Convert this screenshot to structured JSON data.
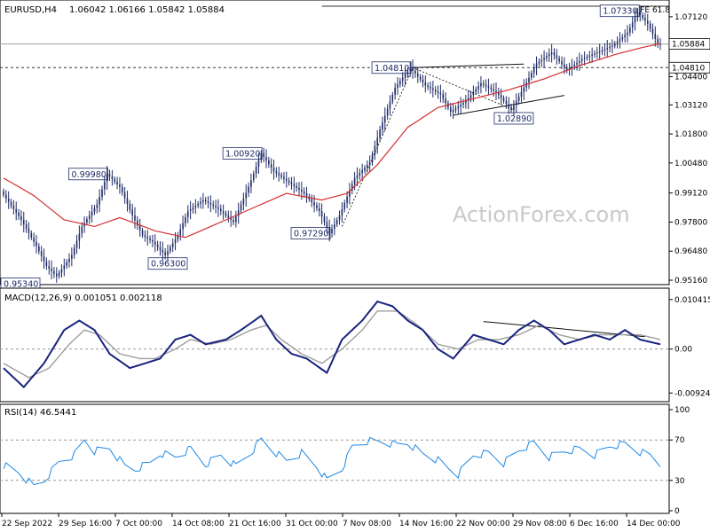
{
  "chart_data": [
    {
      "type": "candlestick",
      "panel": "price",
      "header": {
        "symbol": "EURUSD,H4",
        "ohlc": "1.06042 1.06166 1.05842 1.05884"
      },
      "ylim": [
        0.95,
        1.078
      ],
      "y_ticks": [
        "1.07120",
        "1.04400",
        "1.03120",
        "1.01800",
        "1.00480",
        "0.99120",
        "0.97800",
        "0.96480",
        "0.95160"
      ],
      "current_price": "1.05884",
      "level_label": "1.04810",
      "fe_label": "FE 61.8",
      "watermark": "ActionForex.com",
      "annotations": [
        "0.95340",
        "0.99980",
        "0.96300",
        "1.00920",
        "0.97290",
        "1.04810",
        "1.02890",
        "1.07330"
      ],
      "price_path": [
        [
          0,
          0.992
        ],
        [
          8,
          0.979
        ],
        [
          14,
          0.967
        ],
        [
          18,
          0.958
        ],
        [
          22,
          0.9534
        ],
        [
          28,
          0.963
        ],
        [
          32,
          0.976
        ],
        [
          38,
          0.986
        ],
        [
          42,
          0.9998
        ],
        [
          47,
          0.994
        ],
        [
          52,
          0.981
        ],
        [
          56,
          0.972
        ],
        [
          60,
          0.969
        ],
        [
          65,
          0.963
        ],
        [
          70,
          0.972
        ],
        [
          74,
          0.983
        ],
        [
          80,
          0.988
        ],
        [
          86,
          0.984
        ],
        [
          92,
          0.978
        ],
        [
          98,
          0.994
        ],
        [
          103,
          1.0092
        ],
        [
          108,
          1.001
        ],
        [
          114,
          0.996
        ],
        [
          120,
          0.991
        ],
        [
          126,
          0.983
        ],
        [
          130,
          0.9729
        ],
        [
          134,
          0.981
        ],
        [
          140,
          0.998
        ],
        [
          146,
          1.005
        ],
        [
          150,
          1.02
        ],
        [
          156,
          1.039
        ],
        [
          162,
          1.0481
        ],
        [
          168,
          1.04
        ],
        [
          174,
          1.036
        ],
        [
          178,
          1.028
        ],
        [
          184,
          1.033
        ],
        [
          190,
          1.041
        ],
        [
          196,
          1.037
        ],
        [
          202,
          1.0289
        ],
        [
          206,
          1.037
        ],
        [
          212,
          1.05
        ],
        [
          218,
          1.055
        ],
        [
          224,
          1.047
        ],
        [
          230,
          1.052
        ],
        [
          236,
          1.055
        ],
        [
          242,
          1.058
        ],
        [
          248,
          1.064
        ],
        [
          252,
          1.0733
        ],
        [
          256,
          1.068
        ],
        [
          260,
          1.0588
        ]
      ],
      "sma_path": [
        [
          0,
          0.998
        ],
        [
          12,
          0.99
        ],
        [
          24,
          0.979
        ],
        [
          36,
          0.976
        ],
        [
          46,
          0.98
        ],
        [
          60,
          0.974
        ],
        [
          72,
          0.971
        ],
        [
          86,
          0.978
        ],
        [
          100,
          0.985
        ],
        [
          112,
          0.991
        ],
        [
          126,
          0.988
        ],
        [
          136,
          0.991
        ],
        [
          148,
          1.004
        ],
        [
          160,
          1.021
        ],
        [
          172,
          1.03
        ],
        [
          186,
          1.034
        ],
        [
          200,
          1.038
        ],
        [
          214,
          1.043
        ],
        [
          228,
          1.049
        ],
        [
          242,
          1.054
        ],
        [
          252,
          1.057
        ],
        [
          260,
          1.059
        ]
      ],
      "colors": {
        "candles": "#1e2b66",
        "sma": "#d32f2f",
        "trendlines": "#111111",
        "dashed": "#333333"
      }
    },
    {
      "type": "line",
      "panel": "macd",
      "header": "MACD(12,26,9) 0.001051 0.002118",
      "ylim": [
        -0.0105,
        0.0115
      ],
      "y_ticks": [
        "0.010415",
        "0.00",
        "-0.009244"
      ],
      "macd": [
        [
          0,
          -0.004
        ],
        [
          8,
          -0.008
        ],
        [
          16,
          -0.003
        ],
        [
          24,
          0.004
        ],
        [
          30,
          0.006
        ],
        [
          36,
          0.004
        ],
        [
          42,
          -0.001
        ],
        [
          50,
          -0.004
        ],
        [
          56,
          -0.003
        ],
        [
          62,
          -0.002
        ],
        [
          68,
          0.002
        ],
        [
          74,
          0.003
        ],
        [
          80,
          0.001
        ],
        [
          88,
          0.002
        ],
        [
          94,
          0.004
        ],
        [
          102,
          0.007
        ],
        [
          108,
          0.002
        ],
        [
          114,
          -0.001
        ],
        [
          120,
          -0.002
        ],
        [
          128,
          -0.005
        ],
        [
          134,
          0.002
        ],
        [
          142,
          0.006
        ],
        [
          148,
          0.01
        ],
        [
          154,
          0.009
        ],
        [
          160,
          0.006
        ],
        [
          166,
          0.004
        ],
        [
          172,
          0.0
        ],
        [
          178,
          -0.002
        ],
        [
          186,
          0.003
        ],
        [
          192,
          0.002
        ],
        [
          198,
          0.001
        ],
        [
          204,
          0.004
        ],
        [
          210,
          0.006
        ],
        [
          216,
          0.004
        ],
        [
          222,
          0.001
        ],
        [
          228,
          0.002
        ],
        [
          234,
          0.003
        ],
        [
          240,
          0.002
        ],
        [
          246,
          0.004
        ],
        [
          252,
          0.002
        ],
        [
          260,
          0.001
        ]
      ],
      "signal": [
        [
          0,
          -0.003
        ],
        [
          10,
          -0.006
        ],
        [
          18,
          -0.004
        ],
        [
          26,
          0.001
        ],
        [
          32,
          0.004
        ],
        [
          38,
          0.003
        ],
        [
          46,
          -0.001
        ],
        [
          54,
          -0.002
        ],
        [
          60,
          -0.002
        ],
        [
          68,
          0.0
        ],
        [
          74,
          0.002
        ],
        [
          82,
          0.001
        ],
        [
          90,
          0.002
        ],
        [
          98,
          0.004
        ],
        [
          104,
          0.005
        ],
        [
          110,
          0.002
        ],
        [
          118,
          -0.001
        ],
        [
          126,
          -0.003
        ],
        [
          134,
          0.0
        ],
        [
          142,
          0.004
        ],
        [
          148,
          0.008
        ],
        [
          156,
          0.008
        ],
        [
          164,
          0.005
        ],
        [
          172,
          0.001
        ],
        [
          180,
          0.0
        ],
        [
          188,
          0.002
        ],
        [
          196,
          0.002
        ],
        [
          204,
          0.003
        ],
        [
          212,
          0.005
        ],
        [
          220,
          0.003
        ],
        [
          228,
          0.002
        ],
        [
          236,
          0.003
        ],
        [
          244,
          0.003
        ],
        [
          252,
          0.003
        ],
        [
          260,
          0.002
        ]
      ],
      "colors": {
        "macd": "#1a237e",
        "signal": "#9e9e9e",
        "trend": "#111111",
        "zero": "#999999"
      }
    },
    {
      "type": "line",
      "panel": "rsi",
      "header": "RSI(14) 46.5441",
      "ylim": [
        0,
        100
      ],
      "y_ticks": [
        "100",
        "70",
        "30",
        "0"
      ],
      "rsi": [
        [
          0,
          45
        ],
        [
          6,
          38
        ],
        [
          12,
          24
        ],
        [
          16,
          30
        ],
        [
          22,
          48
        ],
        [
          28,
          55
        ],
        [
          32,
          70
        ],
        [
          36,
          59
        ],
        [
          42,
          62
        ],
        [
          48,
          44
        ],
        [
          52,
          41
        ],
        [
          58,
          47
        ],
        [
          62,
          57
        ],
        [
          68,
          53
        ],
        [
          74,
          61
        ],
        [
          80,
          46
        ],
        [
          86,
          55
        ],
        [
          92,
          44
        ],
        [
          98,
          58
        ],
        [
          102,
          70
        ],
        [
          106,
          61
        ],
        [
          112,
          49
        ],
        [
          118,
          57
        ],
        [
          124,
          44
        ],
        [
          128,
          30
        ],
        [
          134,
          42
        ],
        [
          138,
          63
        ],
        [
          144,
          69
        ],
        [
          150,
          68
        ],
        [
          156,
          65
        ],
        [
          160,
          67
        ],
        [
          166,
          56
        ],
        [
          172,
          50
        ],
        [
          176,
          42
        ],
        [
          180,
          36
        ],
        [
          186,
          55
        ],
        [
          192,
          57
        ],
        [
          198,
          47
        ],
        [
          204,
          60
        ],
        [
          210,
          67
        ],
        [
          216,
          53
        ],
        [
          222,
          59
        ],
        [
          228,
          61
        ],
        [
          234,
          55
        ],
        [
          240,
          64
        ],
        [
          246,
          66
        ],
        [
          252,
          58
        ],
        [
          256,
          55
        ],
        [
          260,
          46
        ]
      ],
      "colors": {
        "rsi": "#1e88e5",
        "levels": "#999999"
      }
    }
  ],
  "x_axis_labels": [
    "22 Sep 2022",
    "29 Sep 16:00",
    "7 Oct 00:00",
    "14 Oct 08:00",
    "21 Oct 16:00",
    "31 Oct 00:00",
    "7 Nov 08:00",
    "14 Nov 16:00",
    "22 Nov 00:00",
    "29 Nov 08:00",
    "6 Dec 16:00",
    "14 Dec 00:00"
  ]
}
